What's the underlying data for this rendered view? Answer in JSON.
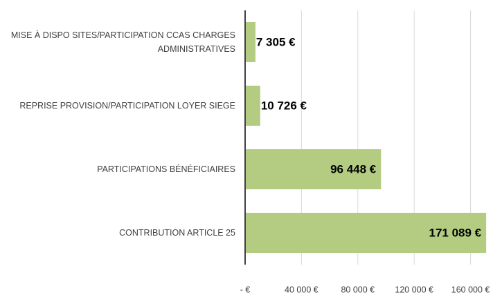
{
  "chart_data": {
    "type": "bar",
    "orientation": "horizontal",
    "categories": [
      "MISE À DISPO SITES/PARTICIPATION CCAS CHARGES ADMINISTRATIVES",
      "REPRISE PROVISION/PARTICIPATION LOYER SIEGE",
      "PARTICIPATIONS BÉNÉFICIAIRES",
      "CONTRIBUTION ARTICLE 25"
    ],
    "values": [
      7305,
      10726,
      96448,
      171089
    ],
    "value_labels": [
      "7 305 €",
      "10 726 €",
      "96 448 €",
      "171 089 €"
    ],
    "color": "#b3cc82",
    "xlim": [
      0,
      172000
    ],
    "xticks": [
      {
        "value": 0,
        "label": "-  €"
      },
      {
        "value": 40000,
        "label": "40 000 €"
      },
      {
        "value": 80000,
        "label": "80 000 €"
      },
      {
        "value": 120000,
        "label": "120 000 €"
      },
      {
        "value": 160000,
        "label": "160 000 €"
      }
    ],
    "grid": true
  }
}
